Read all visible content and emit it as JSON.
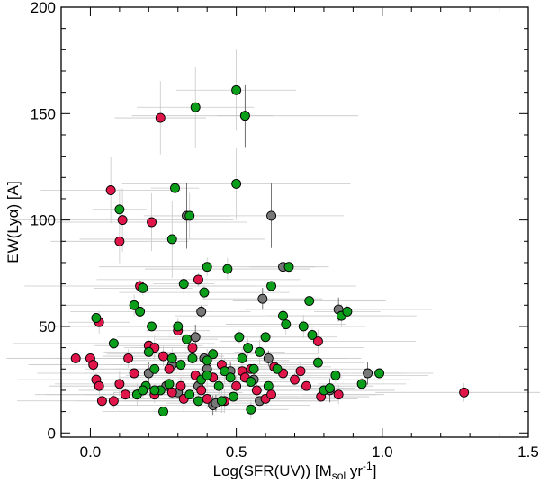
{
  "chart_data": {
    "type": "scatter",
    "title": "",
    "xlabel": "Log(SFR(UV)) [M",
    "xlabel_sub": "sol",
    "xlabel_mid": " yr",
    "xlabel_sup": "-1",
    "xlabel_end": "]",
    "ylabel": "EW(Lyα) [A]",
    "xlim": [
      -0.1,
      1.5
    ],
    "ylim": [
      -2,
      200
    ],
    "xticks": [
      0.0,
      0.5,
      1.0,
      1.5
    ],
    "xtick_labels": [
      "0.0",
      "0.5",
      "1.0",
      "1.5"
    ],
    "yticks": [
      0,
      50,
      100,
      150,
      200
    ],
    "ytick_labels": [
      "0",
      "50",
      "100",
      "150",
      "200"
    ],
    "grid": false,
    "legend": "none",
    "colors": {
      "red": "#e0164a",
      "green": "#0b9e1a",
      "grey": "#777777",
      "errorbar": "#c8c8c8"
    },
    "series": [
      {
        "color": "red",
        "points": [
          [
            -0.05,
            35
          ],
          [
            0.0,
            35
          ],
          [
            0.01,
            32
          ],
          [
            0.03,
            52
          ],
          [
            0.02,
            25
          ],
          [
            0.03,
            22
          ],
          [
            0.04,
            15
          ],
          [
            0.07,
            114
          ],
          [
            0.08,
            15
          ],
          [
            0.1,
            90
          ],
          [
            0.11,
            100
          ],
          [
            0.1,
            23
          ],
          [
            0.12,
            18
          ],
          [
            0.13,
            35
          ],
          [
            0.15,
            28
          ],
          [
            0.17,
            69
          ],
          [
            0.18,
            20
          ],
          [
            0.2,
            41
          ],
          [
            0.21,
            99
          ],
          [
            0.22,
            40
          ],
          [
            0.24,
            148
          ],
          [
            0.22,
            18
          ],
          [
            0.25,
            36
          ],
          [
            0.27,
            30
          ],
          [
            0.28,
            19
          ],
          [
            0.3,
            48
          ],
          [
            0.31,
            22
          ],
          [
            0.32,
            16
          ],
          [
            0.35,
            40
          ],
          [
            0.36,
            27
          ],
          [
            0.37,
            72
          ],
          [
            0.38,
            20
          ],
          [
            0.4,
            16
          ],
          [
            0.42,
            26
          ],
          [
            0.45,
            32
          ],
          [
            0.46,
            15
          ],
          [
            0.5,
            22
          ],
          [
            0.52,
            29
          ],
          [
            0.53,
            26
          ],
          [
            0.55,
            30
          ],
          [
            0.57,
            20
          ],
          [
            0.6,
            16
          ],
          [
            0.62,
            18
          ],
          [
            0.63,
            31
          ],
          [
            0.66,
            28
          ],
          [
            0.7,
            25
          ],
          [
            0.72,
            29
          ],
          [
            0.74,
            22
          ],
          [
            0.78,
            43
          ],
          [
            0.79,
            17
          ],
          [
            0.85,
            18
          ],
          [
            1.28,
            19
          ]
        ]
      },
      {
        "color": "green",
        "points": [
          [
            0.02,
            54
          ],
          [
            0.08,
            42
          ],
          [
            0.1,
            105
          ],
          [
            0.15,
            60
          ],
          [
            0.16,
            18
          ],
          [
            0.17,
            57
          ],
          [
            0.18,
            68
          ],
          [
            0.19,
            22
          ],
          [
            0.2,
            38
          ],
          [
            0.21,
            50
          ],
          [
            0.22,
            30
          ],
          [
            0.24,
            20
          ],
          [
            0.25,
            10
          ],
          [
            0.27,
            23
          ],
          [
            0.29,
            115
          ],
          [
            0.28,
            91
          ],
          [
            0.3,
            50
          ],
          [
            0.31,
            32
          ],
          [
            0.32,
            70
          ],
          [
            0.33,
            44
          ],
          [
            0.34,
            102
          ],
          [
            0.35,
            35
          ],
          [
            0.36,
            153
          ],
          [
            0.37,
            15
          ],
          [
            0.38,
            25
          ],
          [
            0.39,
            66
          ],
          [
            0.4,
            78
          ],
          [
            0.4,
            27
          ],
          [
            0.42,
            37
          ],
          [
            0.44,
            22
          ],
          [
            0.45,
            15
          ],
          [
            0.46,
            29
          ],
          [
            0.47,
            77
          ],
          [
            0.49,
            17
          ],
          [
            0.5,
            117
          ],
          [
            0.5,
            161
          ],
          [
            0.51,
            45
          ],
          [
            0.52,
            35
          ],
          [
            0.53,
            149
          ],
          [
            0.54,
            40
          ],
          [
            0.55,
            11
          ],
          [
            0.55,
            24
          ],
          [
            0.56,
            30
          ],
          [
            0.58,
            38
          ],
          [
            0.6,
            45
          ],
          [
            0.61,
            22
          ],
          [
            0.62,
            69
          ],
          [
            0.64,
            30
          ],
          [
            0.66,
            55
          ],
          [
            0.67,
            51
          ],
          [
            0.68,
            78
          ],
          [
            0.73,
            50
          ],
          [
            0.75,
            62
          ],
          [
            0.76,
            46
          ],
          [
            0.78,
            33
          ],
          [
            0.8,
            20
          ],
          [
            0.82,
            21
          ],
          [
            0.84,
            27
          ],
          [
            0.86,
            55
          ],
          [
            0.88,
            57
          ],
          [
            0.93,
            23
          ],
          [
            0.99,
            28
          ],
          [
            0.16,
            18
          ],
          [
            0.18,
            20
          ],
          [
            0.22,
            20
          ],
          [
            0.28,
            35
          ],
          [
            0.34,
            18
          ],
          [
            0.4,
            34
          ],
          [
            0.48,
            26
          ]
        ]
      },
      {
        "color": "grey",
        "points": [
          [
            0.2,
            28
          ],
          [
            0.28,
            32
          ],
          [
            0.33,
            102
          ],
          [
            0.36,
            45
          ],
          [
            0.38,
            57
          ],
          [
            0.39,
            35
          ],
          [
            0.4,
            30
          ],
          [
            0.42,
            13
          ],
          [
            0.43,
            14
          ],
          [
            0.48,
            29
          ],
          [
            0.53,
            149
          ],
          [
            0.56,
            25
          ],
          [
            0.58,
            15
          ],
          [
            0.59,
            63
          ],
          [
            0.61,
            35
          ],
          [
            0.62,
            102
          ],
          [
            0.66,
            78
          ],
          [
            0.82,
            20
          ],
          [
            0.85,
            58
          ],
          [
            0.95,
            28
          ],
          [
            0.3,
            19
          ],
          [
            0.37,
            22
          ],
          [
            0.26,
            22
          ]
        ]
      }
    ]
  }
}
